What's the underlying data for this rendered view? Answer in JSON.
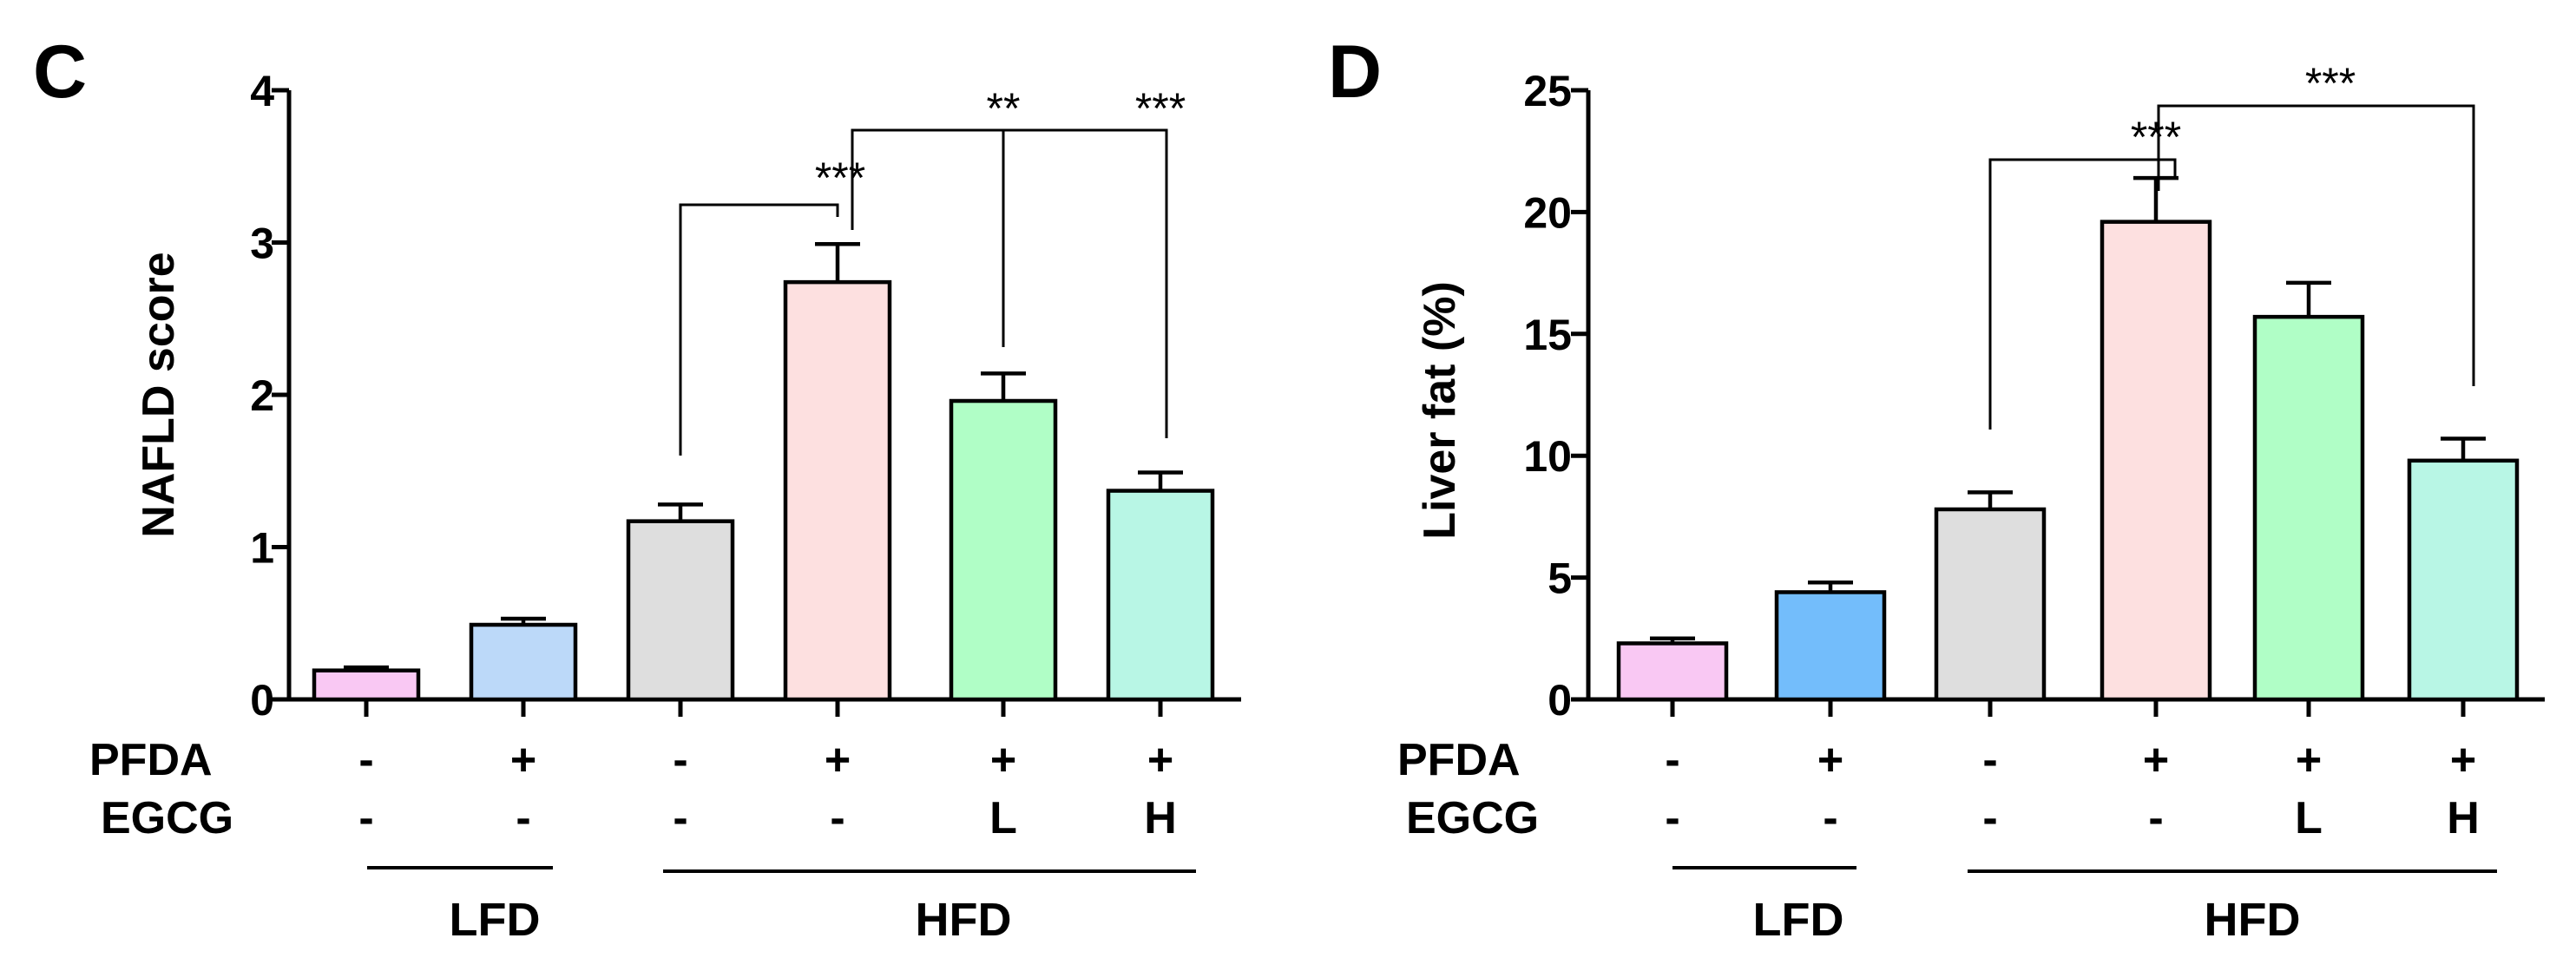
{
  "chart_data": [
    {
      "panel": "C",
      "type": "bar",
      "ylabel": "NAFLD score",
      "ylim": [
        0,
        4
      ],
      "yticks": [
        "0",
        "1",
        "2",
        "3",
        "4"
      ],
      "values": [
        0.19,
        0.49,
        1.17,
        2.74,
        1.96,
        1.37
      ],
      "errors": [
        0.02,
        0.04,
        0.11,
        0.25,
        0.18,
        0.12
      ],
      "colors": [
        "#f9c8f3",
        "#bcd9f9",
        "#dedede",
        "#fde0e0",
        "#b0fec6",
        "#b8f6e5"
      ],
      "row_labels": [
        "PFDA",
        "EGCG"
      ],
      "pfda": [
        "-",
        "+",
        "-",
        "+",
        "+",
        "+"
      ],
      "egcg": [
        "-",
        "-",
        "-",
        "-",
        "L",
        "H"
      ],
      "diets": [
        "LFD",
        "HFD"
      ],
      "significance": [
        "***",
        "**",
        "***"
      ]
    },
    {
      "panel": "D",
      "type": "bar",
      "ylabel": "Liver fat (%)",
      "ylim": [
        0,
        25
      ],
      "yticks": [
        "0",
        "5",
        "10",
        "15",
        "20",
        "25"
      ],
      "values": [
        2.3,
        4.4,
        7.8,
        19.6,
        15.7,
        9.8
      ],
      "errors": [
        0.2,
        0.4,
        0.7,
        1.8,
        1.4,
        0.9
      ],
      "colors": [
        "#f9c8f3",
        "#73bdfb",
        "#dedede",
        "#fde0e0",
        "#b0fec6",
        "#b8f6e5"
      ],
      "row_labels": [
        "PFDA",
        "EGCG"
      ],
      "pfda": [
        "-",
        "+",
        "-",
        "+",
        "+",
        "+"
      ],
      "egcg": [
        "-",
        "-",
        "-",
        "-",
        "L",
        "H"
      ],
      "diets": [
        "LFD",
        "HFD"
      ],
      "significance": [
        "***",
        "***"
      ]
    }
  ]
}
